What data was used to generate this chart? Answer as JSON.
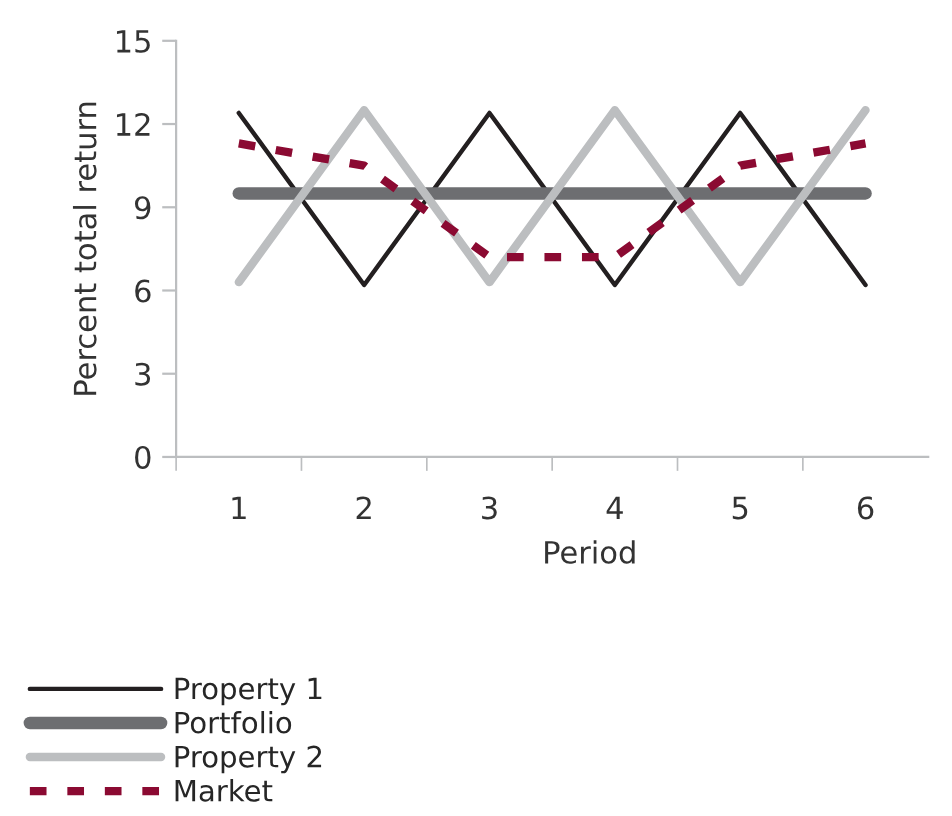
{
  "chart_data": {
    "type": "line",
    "xlabel": "Period",
    "ylabel": "Percent total return",
    "categories": [
      "1",
      "2",
      "3",
      "4",
      "5",
      "6"
    ],
    "series": [
      {
        "name": "Property 1",
        "color": "#231f20",
        "line_style": "solid",
        "values": [
          12.4,
          6.2,
          12.4,
          6.2,
          12.4,
          6.2
        ]
      },
      {
        "name": "Portfolio",
        "color": "#6d6e71",
        "line_style": "solid",
        "values": [
          9.5,
          9.5,
          9.5,
          9.5,
          9.5,
          9.5
        ]
      },
      {
        "name": "Property 2",
        "color": "#bcbec0",
        "line_style": "solid",
        "values": [
          6.3,
          12.5,
          6.3,
          12.5,
          6.3,
          12.5
        ]
      },
      {
        "name": "Market",
        "color": "#8b0a32",
        "line_style": "dashed",
        "values": [
          11.3,
          10.5,
          7.2,
          7.2,
          10.5,
          11.3
        ]
      }
    ],
    "ylim": [
      0,
      15
    ],
    "yticks": [
      0,
      3,
      6,
      9,
      12,
      15
    ],
    "grid": false,
    "legend": "bottom left",
    "marker": "none"
  }
}
